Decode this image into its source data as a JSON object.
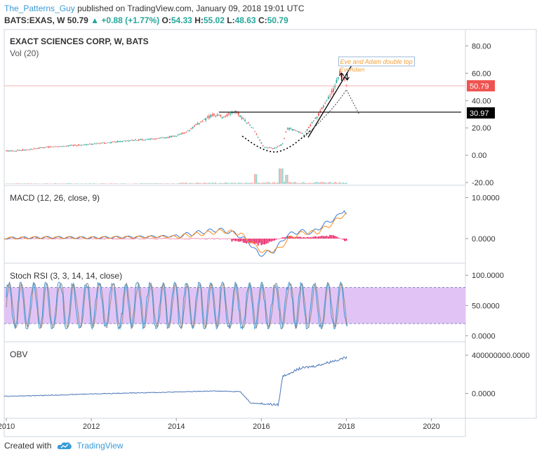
{
  "header": {
    "user": "The_Patterns_Guy",
    "published": " published on TradingView.com, January 09, 2018 19:01 UTC",
    "symbol": "BATS:EXAS, W",
    "last": "50.79",
    "arrow": "▲",
    "change": "+0.88 (+1.77%)",
    "o_label": "O:",
    "o": "54.33",
    "h_label": "H:",
    "h": "55.02",
    "l_label": "L:",
    "l": "48.63",
    "c_label": "C:",
    "c": "50.79"
  },
  "footer": {
    "created_with": "Created with",
    "brand": "TradingView"
  },
  "colors": {
    "up": "#26a69a",
    "down": "#ef5350",
    "macd_line": "#3a7bd5",
    "signal_line": "#ff8c1a",
    "histogram": "#e91e63",
    "stoch_k": "#3a9bd8",
    "stoch_d": "#f28b82",
    "band": "#e1c4f5",
    "obv": "#4a76b8",
    "price_label": "#ef5350",
    "level_label": "#000000"
  },
  "chart_data": [
    {
      "type": "candlestick",
      "title": "EXACT SCIENCES CORP, W, BATS",
      "subtitle": "Vol (20)",
      "x_ticks": [
        "2010",
        "2012",
        "2014",
        "2016",
        "2018",
        "2020"
      ],
      "x_range": [
        2009.95,
        2020.8
      ],
      "y_ticks": [
        "80.00",
        "60.00",
        "40.00",
        "20.00",
        "0.00",
        "-20.00"
      ],
      "y_range": [
        -22,
        92
      ],
      "last_price_label": "50.79",
      "level_label": "30.97",
      "level_price": 30.97,
      "horizontal_levels": [
        {
          "price": 31.5,
          "from": 2015.0,
          "to": 2020.7,
          "color": "#000000"
        }
      ],
      "annotation": {
        "lines": [
          "Eve and Adam double top",
          "Eve"
        ],
        "sublabel": "Adam",
        "color": "#f2a13c"
      },
      "trend_points": [
        {
          "x": 2009.95,
          "y": 3
        },
        {
          "x": 2010.5,
          "y": 4
        },
        {
          "x": 2011.0,
          "y": 6
        },
        {
          "x": 2011.5,
          "y": 7
        },
        {
          "x": 2012.0,
          "y": 8
        },
        {
          "x": 2012.5,
          "y": 9.5
        },
        {
          "x": 2013.0,
          "y": 11
        },
        {
          "x": 2013.5,
          "y": 12
        },
        {
          "x": 2014.0,
          "y": 14
        },
        {
          "x": 2014.3,
          "y": 18
        },
        {
          "x": 2014.6,
          "y": 25
        },
        {
          "x": 2014.9,
          "y": 30
        },
        {
          "x": 2015.1,
          "y": 28
        },
        {
          "x": 2015.4,
          "y": 32
        },
        {
          "x": 2015.6,
          "y": 26
        },
        {
          "x": 2015.8,
          "y": 20
        },
        {
          "x": 2016.05,
          "y": 6
        },
        {
          "x": 2016.3,
          "y": 5
        },
        {
          "x": 2016.5,
          "y": 8
        },
        {
          "x": 2016.6,
          "y": 20
        },
        {
          "x": 2016.8,
          "y": 18
        },
        {
          "x": 2017.0,
          "y": 15
        },
        {
          "x": 2017.2,
          "y": 24
        },
        {
          "x": 2017.35,
          "y": 30
        },
        {
          "x": 2017.5,
          "y": 38
        },
        {
          "x": 2017.7,
          "y": 48
        },
        {
          "x": 2017.85,
          "y": 60
        },
        {
          "x": 2017.95,
          "y": 55
        },
        {
          "x": 2018.02,
          "y": 50.79
        }
      ]
    },
    {
      "type": "line",
      "title": "MACD (12, 26, close, 9)",
      "y_ticks": [
        "10.0000",
        "0.0000"
      ],
      "y_range": [
        -6,
        13
      ],
      "series": [
        {
          "points": [
            {
              "x": 2009.95,
              "y": 0.1
            },
            {
              "x": 2011.0,
              "y": 0.3
            },
            {
              "x": 2012.0,
              "y": 0.2
            },
            {
              "x": 2013.0,
              "y": 0.4
            },
            {
              "x": 2014.0,
              "y": 0.6
            },
            {
              "x": 2014.6,
              "y": 1.6
            },
            {
              "x": 2015.0,
              "y": 2.2
            },
            {
              "x": 2015.4,
              "y": 1.2
            },
            {
              "x": 2015.7,
              "y": -0.8
            },
            {
              "x": 2015.95,
              "y": -4.0
            },
            {
              "x": 2016.3,
              "y": -3.0
            },
            {
              "x": 2016.6,
              "y": 0.8
            },
            {
              "x": 2016.9,
              "y": 1.8
            },
            {
              "x": 2017.2,
              "y": 1.4
            },
            {
              "x": 2017.5,
              "y": 3.6
            },
            {
              "x": 2017.8,
              "y": 5.4
            },
            {
              "x": 2017.95,
              "y": 7.2
            },
            {
              "x": 2018.02,
              "y": 5.3
            }
          ]
        },
        {
          "points": [
            {
              "x": 2009.95,
              "y": 0.1
            },
            {
              "x": 2011.0,
              "y": 0.25
            },
            {
              "x": 2012.0,
              "y": 0.2
            },
            {
              "x": 2013.0,
              "y": 0.35
            },
            {
              "x": 2014.0,
              "y": 0.5
            },
            {
              "x": 2014.7,
              "y": 1.3
            },
            {
              "x": 2015.1,
              "y": 1.9
            },
            {
              "x": 2015.5,
              "y": 1.2
            },
            {
              "x": 2015.8,
              "y": -1.2
            },
            {
              "x": 2016.05,
              "y": -3.4
            },
            {
              "x": 2016.4,
              "y": -2.6
            },
            {
              "x": 2016.7,
              "y": 0.4
            },
            {
              "x": 2017.0,
              "y": 1.5
            },
            {
              "x": 2017.3,
              "y": 1.5
            },
            {
              "x": 2017.6,
              "y": 3.2
            },
            {
              "x": 2017.9,
              "y": 5.6
            },
            {
              "x": 2018.02,
              "y": 6.0
            }
          ]
        }
      ],
      "histogram_points": [
        {
          "x": 2015.5,
          "y": -0.6
        },
        {
          "x": 2015.7,
          "y": -1.2
        },
        {
          "x": 2015.9,
          "y": -1.6
        },
        {
          "x": 2016.2,
          "y": -0.8
        },
        {
          "x": 2016.6,
          "y": 0.6
        },
        {
          "x": 2016.8,
          "y": 0.4
        },
        {
          "x": 2017.1,
          "y": 0.3
        },
        {
          "x": 2017.7,
          "y": 0.8
        },
        {
          "x": 2018.0,
          "y": -0.7
        }
      ]
    },
    {
      "type": "line",
      "title": "Stoch RSI (3, 3, 14, 14, close)",
      "y_ticks": [
        "100.0000",
        "50.0000",
        "0.0000"
      ],
      "y_range": [
        -10,
        120
      ],
      "band": [
        20,
        80
      ],
      "cycles_per_year": 3.2,
      "x_end": 2018.02
    },
    {
      "type": "line",
      "title": "OBV",
      "y_ticks": [
        "400000000.0000",
        "0.0000"
      ],
      "y_range": [
        -260000000,
        540000000
      ],
      "series": [
        {
          "points": [
            {
              "x": 2009.95,
              "y": -30000000
            },
            {
              "x": 2011.0,
              "y": -20000000
            },
            {
              "x": 2012.0,
              "y": -5000000
            },
            {
              "x": 2013.0,
              "y": 5000000
            },
            {
              "x": 2014.0,
              "y": 15000000
            },
            {
              "x": 2014.8,
              "y": 25000000
            },
            {
              "x": 2015.5,
              "y": 20000000
            },
            {
              "x": 2015.75,
              "y": -100000000
            },
            {
              "x": 2016.1,
              "y": -110000000
            },
            {
              "x": 2016.4,
              "y": -120000000
            },
            {
              "x": 2016.5,
              "y": 180000000
            },
            {
              "x": 2016.9,
              "y": 260000000
            },
            {
              "x": 2017.3,
              "y": 290000000
            },
            {
              "x": 2017.7,
              "y": 340000000
            },
            {
              "x": 2018.02,
              "y": 380000000
            }
          ]
        }
      ]
    }
  ]
}
